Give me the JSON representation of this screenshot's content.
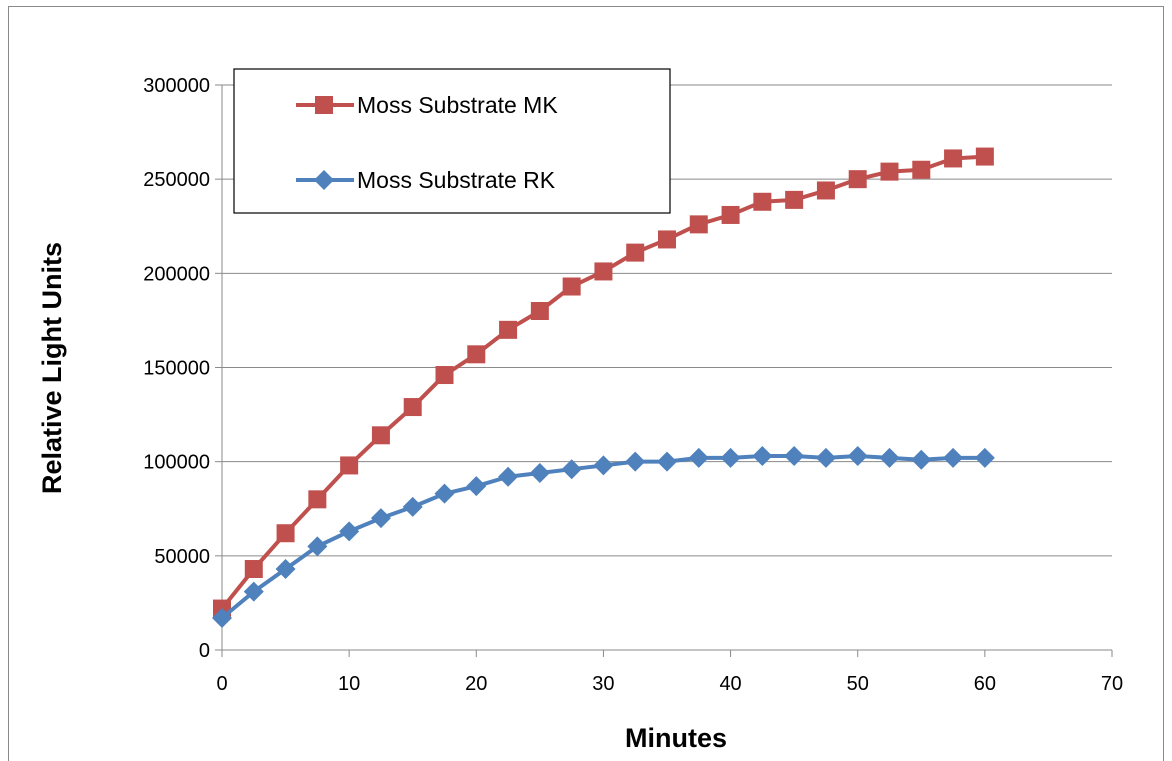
{
  "chart_data": {
    "type": "line",
    "title": "",
    "xlabel": "Minutes",
    "ylabel": "Relative Light Units",
    "xlim": [
      0,
      70
    ],
    "ylim": [
      0,
      300000
    ],
    "x_ticks": [
      "0",
      "10",
      "20",
      "30",
      "40",
      "50",
      "60",
      "70"
    ],
    "y_ticks": [
      "0",
      "50000",
      "100000",
      "150000",
      "200000",
      "250000",
      "300000"
    ],
    "grid": "horizontal",
    "legend_position": "top-left",
    "x": [
      0,
      2.5,
      5,
      7.5,
      10,
      12.5,
      15,
      17.5,
      20,
      22.5,
      25,
      27.5,
      30,
      32.5,
      35,
      37.5,
      40,
      42.5,
      45,
      47.5,
      50,
      52.5,
      55,
      57.5,
      60
    ],
    "series": [
      {
        "name": "Moss Substrate MK",
        "color": "#c0504d",
        "marker": "square",
        "values": [
          22000,
          43000,
          62000,
          80000,
          98000,
          114000,
          129000,
          146000,
          157000,
          170000,
          180000,
          193000,
          201000,
          211000,
          218000,
          226000,
          231000,
          238000,
          239000,
          244000,
          250000,
          254000,
          255000,
          261000,
          262000
        ]
      },
      {
        "name": "Moss Substrate RK",
        "color": "#4f81bd",
        "marker": "diamond",
        "values": [
          17000,
          31000,
          43000,
          55000,
          63000,
          70000,
          76000,
          83000,
          87000,
          92000,
          94000,
          96000,
          98000,
          100000,
          100000,
          102000,
          102000,
          103000,
          103000,
          102000,
          103000,
          102000,
          101000,
          102000,
          102000
        ]
      }
    ]
  }
}
